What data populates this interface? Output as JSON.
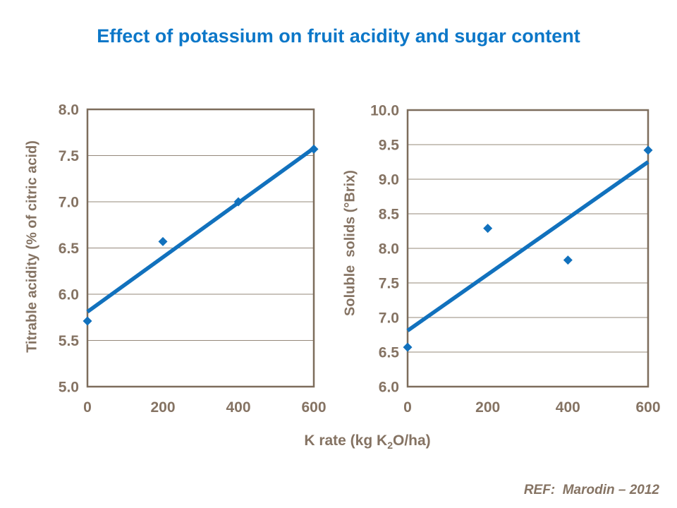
{
  "title": "Effect of potassium on fruit acidity and sugar content",
  "ref_note": "REF:  Marodin – 2012",
  "x_axis_label": {
    "pre": "K rate (kg K",
    "sub": "2",
    "post": "O/ha)"
  },
  "colors": {
    "title": "#0c77c8",
    "series": "#1171bd",
    "axis_text": "#857363",
    "grid": "#95887a",
    "plot_border": "#7d6d5c",
    "background": "#ffffff"
  },
  "chart_data": [
    {
      "type": "scatter",
      "id": "titrable-acidity",
      "ylabel": "Titrable acidity (% of citric acid)",
      "xlabel": "K rate (kg K2O/ha)",
      "x": [
        0,
        200,
        400,
        600
      ],
      "y": [
        5.71,
        6.57,
        7.0,
        7.57
      ],
      "trendline": {
        "x": [
          0,
          600
        ],
        "y": [
          5.81,
          7.58
        ]
      },
      "xlim": [
        0,
        600
      ],
      "ylim": [
        5.0,
        8.0
      ],
      "ytick_step": 0.5,
      "xticks": [
        0,
        200,
        400,
        600
      ],
      "grid": true,
      "legend": "none",
      "marker": "diamond"
    },
    {
      "type": "scatter",
      "id": "soluble-solids",
      "ylabel": "Soluble  solids (°Brix)",
      "xlabel": "K rate (kg K2O/ha)",
      "x": [
        0,
        200,
        400,
        600
      ],
      "y": [
        6.57,
        8.29,
        7.83,
        9.42
      ],
      "trendline": {
        "x": [
          0,
          600
        ],
        "y": [
          6.81,
          9.25
        ]
      },
      "xlim": [
        0,
        600
      ],
      "ylim": [
        6.0,
        10.0
      ],
      "ytick_step": 0.5,
      "xticks": [
        0,
        200,
        400,
        600
      ],
      "grid": true,
      "legend": "none",
      "marker": "diamond"
    }
  ]
}
